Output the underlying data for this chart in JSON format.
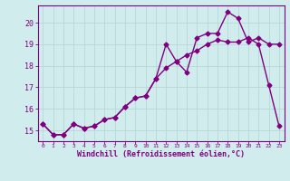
{
  "xlabel": "Windchill (Refroidissement éolien,°C)",
  "hours": [
    0,
    1,
    2,
    3,
    4,
    5,
    6,
    7,
    8,
    9,
    10,
    11,
    12,
    13,
    14,
    15,
    16,
    17,
    18,
    19,
    20,
    21,
    22,
    23
  ],
  "line1": [
    15.3,
    14.8,
    14.8,
    15.3,
    15.1,
    15.2,
    15.5,
    15.6,
    16.1,
    16.5,
    16.6,
    17.4,
    19.0,
    18.2,
    17.7,
    19.3,
    19.5,
    19.5,
    20.5,
    20.2,
    19.1,
    19.3,
    19.0,
    19.0
  ],
  "line2": [
    15.3,
    14.8,
    14.8,
    15.3,
    15.1,
    15.2,
    15.5,
    15.6,
    16.1,
    16.5,
    16.6,
    17.4,
    17.9,
    18.2,
    18.5,
    18.7,
    19.0,
    19.2,
    19.1,
    19.1,
    19.3,
    19.0,
    17.1,
    15.2
  ],
  "line_color": "#800080",
  "bg_color": "#d0ecec",
  "grid_color": "#b8d8d8",
  "ylim": [
    14.5,
    20.8
  ],
  "yticks": [
    15,
    16,
    17,
    18,
    19,
    20
  ],
  "xticks": [
    0,
    1,
    2,
    3,
    4,
    5,
    6,
    7,
    8,
    9,
    10,
    11,
    12,
    13,
    14,
    15,
    16,
    17,
    18,
    19,
    20,
    21,
    22,
    23
  ],
  "marker": "D",
  "markersize": 2.5,
  "linewidth": 1.0
}
